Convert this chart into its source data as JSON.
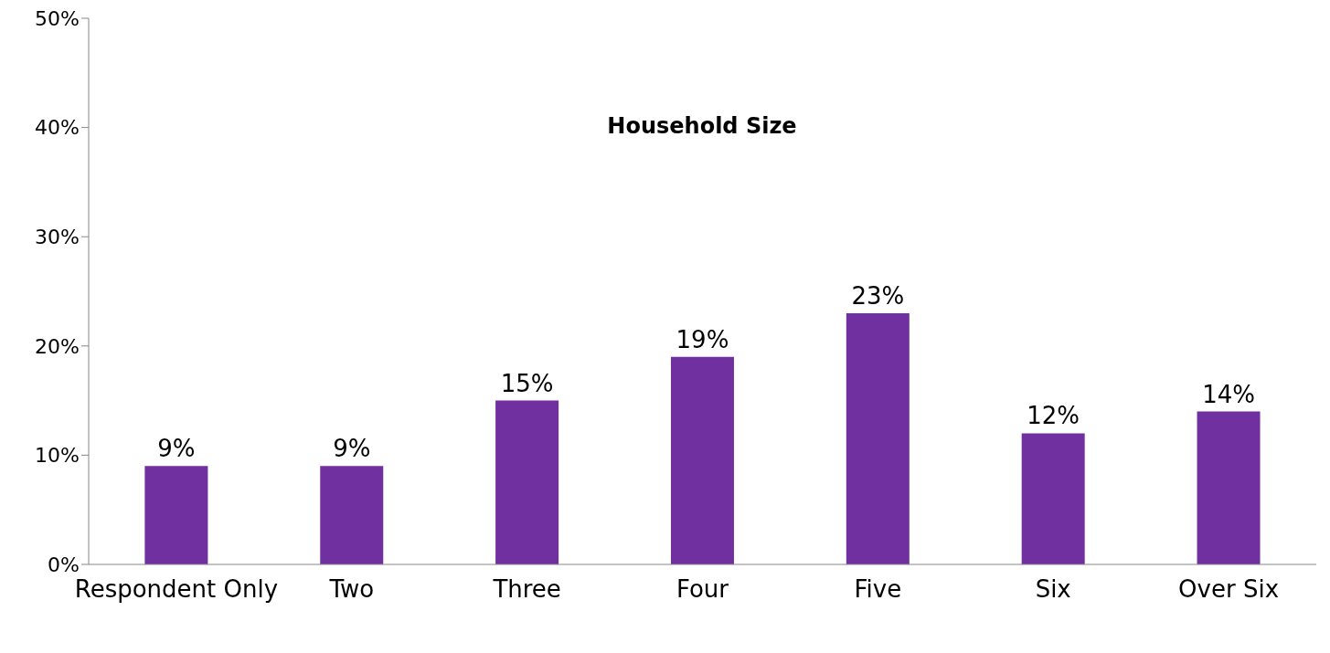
{
  "chart_data": {
    "type": "bar",
    "title": "Household Size",
    "categories": [
      "Respondent Only",
      "Two",
      "Three",
      "Four",
      "Five",
      "Six",
      "Over Six"
    ],
    "values": [
      9,
      9,
      15,
      19,
      23,
      12,
      14
    ],
    "value_labels": [
      "9%",
      "9%",
      "15%",
      "19%",
      "23%",
      "12%",
      "14%"
    ],
    "color": "#7030a0",
    "ylim": [
      0,
      50
    ],
    "yticks": [
      {
        "value": 0,
        "label": "0%"
      },
      {
        "value": 10,
        "label": "10%"
      },
      {
        "value": 20,
        "label": "20%"
      },
      {
        "value": 30,
        "label": "30%"
      },
      {
        "value": 40,
        "label": "40%"
      },
      {
        "value": 50,
        "label": "50%"
      }
    ],
    "grid": false,
    "legend": false
  }
}
